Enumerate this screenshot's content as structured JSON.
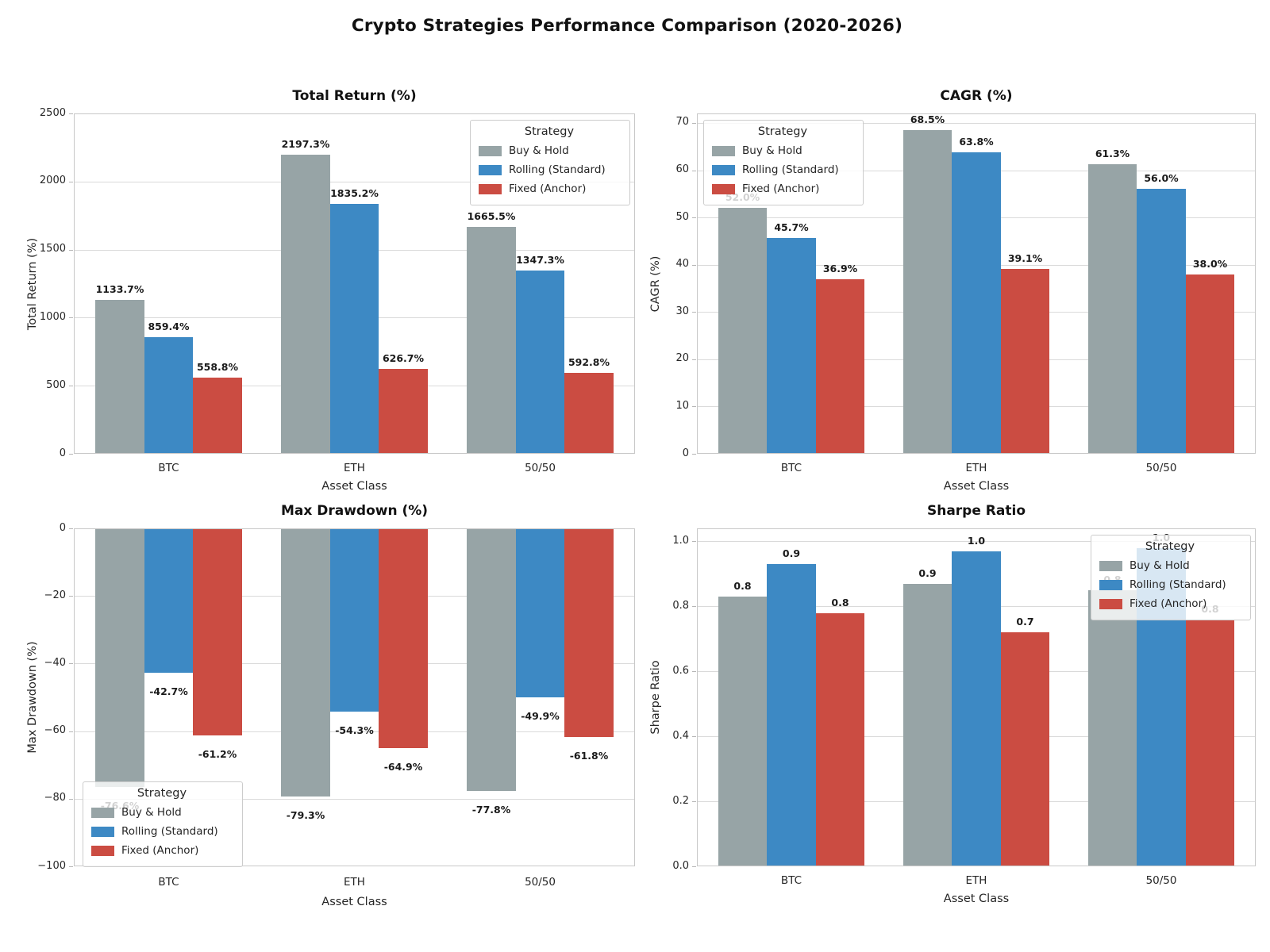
{
  "title": "Crypto Strategies Performance Comparison (2020-2026)",
  "legend_title": "Strategy",
  "strategy_colors": {
    "buy_and_hold": "#97a4a6",
    "rolling_standard": "#3d89c4",
    "fixed_anchor": "#cb4c42"
  },
  "chart_data": [
    {
      "id": "total-return",
      "type": "bar",
      "title": "Total Return (%)",
      "xlabel": "Asset Class",
      "ylabel": "Total Return (%)",
      "categories": [
        "BTC",
        "ETH",
        "50/50"
      ],
      "ylim": [
        0,
        2500
      ],
      "grid": true,
      "legend_pos": "upper-right",
      "yticks": [
        {
          "v": 0,
          "label": "0"
        },
        {
          "v": 500,
          "label": "500"
        },
        {
          "v": 1000,
          "label": "1000"
        },
        {
          "v": 1500,
          "label": "1500"
        },
        {
          "v": 2000,
          "label": "2000"
        },
        {
          "v": 2500,
          "label": "2500"
        }
      ],
      "series": [
        {
          "name": "Buy & Hold",
          "color": "#97a4a6",
          "values": [
            1133.7,
            2197.3,
            1665.5
          ],
          "labels": [
            "1133.7%",
            "2197.3%",
            "1665.5%"
          ]
        },
        {
          "name": "Rolling (Standard)",
          "color": "#3d89c4",
          "values": [
            859.4,
            1835.2,
            1347.3
          ],
          "labels": [
            "859.4%",
            "1835.2%",
            "1347.3%"
          ]
        },
        {
          "name": "Fixed (Anchor)",
          "color": "#cb4c42",
          "values": [
            558.8,
            626.7,
            592.8
          ],
          "labels": [
            "558.8%",
            "626.7%",
            "592.8%"
          ]
        }
      ]
    },
    {
      "id": "cagr",
      "type": "bar",
      "title": "CAGR (%)",
      "xlabel": "Asset Class",
      "ylabel": "CAGR (%)",
      "categories": [
        "BTC",
        "ETH",
        "50/50"
      ],
      "ylim": [
        0,
        72
      ],
      "grid": true,
      "legend_pos": "upper-left",
      "yticks": [
        {
          "v": 0,
          "label": "0"
        },
        {
          "v": 10,
          "label": "10"
        },
        {
          "v": 20,
          "label": "20"
        },
        {
          "v": 30,
          "label": "30"
        },
        {
          "v": 40,
          "label": "40"
        },
        {
          "v": 50,
          "label": "50"
        },
        {
          "v": 60,
          "label": "60"
        },
        {
          "v": 70,
          "label": "70"
        }
      ],
      "series": [
        {
          "name": "Buy & Hold",
          "color": "#97a4a6",
          "values": [
            52.0,
            68.5,
            61.3
          ],
          "labels": [
            "52.0%",
            "68.5%",
            "61.3%"
          ]
        },
        {
          "name": "Rolling (Standard)",
          "color": "#3d89c4",
          "values": [
            45.7,
            63.8,
            56.0
          ],
          "labels": [
            "45.7%",
            "63.8%",
            "56.0%"
          ]
        },
        {
          "name": "Fixed (Anchor)",
          "color": "#cb4c42",
          "values": [
            36.9,
            39.1,
            38.0
          ],
          "labels": [
            "36.9%",
            "39.1%",
            "38.0%"
          ]
        }
      ]
    },
    {
      "id": "max-drawdown",
      "type": "bar",
      "title": "Max Drawdown (%)",
      "xlabel": "Asset Class",
      "ylabel": "Max Drawdown (%)",
      "categories": [
        "BTC",
        "ETH",
        "50/50"
      ],
      "ylim": [
        0,
        -100
      ],
      "grid": true,
      "legend_pos": "lower-left",
      "yticks": [
        {
          "v": 0,
          "label": "0"
        },
        {
          "v": -20,
          "label": "−20"
        },
        {
          "v": -40,
          "label": "−40"
        },
        {
          "v": -60,
          "label": "−60"
        },
        {
          "v": -80,
          "label": "−80"
        },
        {
          "v": -100,
          "label": "−100"
        }
      ],
      "series": [
        {
          "name": "Buy & Hold",
          "color": "#97a4a6",
          "values": [
            -76.6,
            -79.3,
            -77.8
          ],
          "labels": [
            "-76.6%",
            "-79.3%",
            "-77.8%"
          ]
        },
        {
          "name": "Rolling (Standard)",
          "color": "#3d89c4",
          "values": [
            -42.7,
            -54.3,
            -49.9
          ],
          "labels": [
            "-42.7%",
            "-54.3%",
            "-49.9%"
          ]
        },
        {
          "name": "Fixed (Anchor)",
          "color": "#cb4c42",
          "values": [
            -61.2,
            -64.9,
            -61.8
          ],
          "labels": [
            "-61.2%",
            "-64.9%",
            "-61.8%"
          ]
        }
      ]
    },
    {
      "id": "sharpe-ratio",
      "type": "bar",
      "title": "Sharpe Ratio",
      "xlabel": "Asset Class",
      "ylabel": "Sharpe Ratio",
      "categories": [
        "BTC",
        "ETH",
        "50/50"
      ],
      "ylim": [
        0,
        1.04
      ],
      "grid": true,
      "legend_pos": "upper-right",
      "yticks": [
        {
          "v": 0,
          "label": "0.0"
        },
        {
          "v": 0.2,
          "label": "0.2"
        },
        {
          "v": 0.4,
          "label": "0.4"
        },
        {
          "v": 0.6,
          "label": "0.6"
        },
        {
          "v": 0.8,
          "label": "0.8"
        },
        {
          "v": 1.0,
          "label": "1.0"
        }
      ],
      "series": [
        {
          "name": "Buy & Hold",
          "color": "#97a4a6",
          "values": [
            0.83,
            0.87,
            0.85
          ],
          "labels": [
            "0.8",
            "0.9",
            "0.8"
          ]
        },
        {
          "name": "Rolling (Standard)",
          "color": "#3d89c4",
          "values": [
            0.93,
            0.97,
            0.98
          ],
          "labels": [
            "0.9",
            "1.0",
            "1.0"
          ]
        },
        {
          "name": "Fixed (Anchor)",
          "color": "#cb4c42",
          "values": [
            0.78,
            0.72,
            0.76
          ],
          "labels": [
            "0.8",
            "0.7",
            "0.8"
          ]
        }
      ]
    }
  ]
}
